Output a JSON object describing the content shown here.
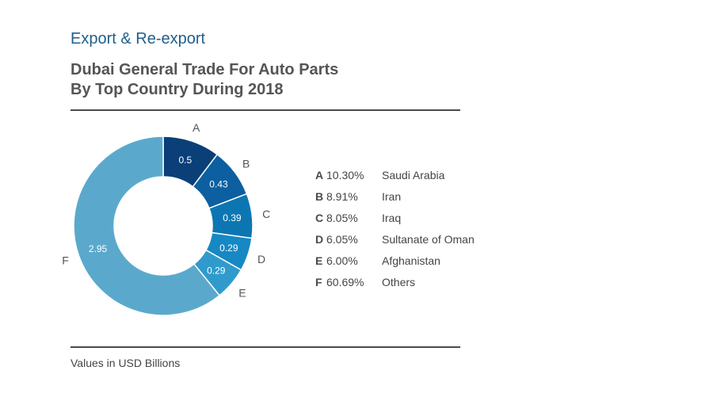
{
  "section_title": "Export & Re-export",
  "title_line1": "Dubai General Trade For Auto Parts",
  "title_line2": "By Top Country During 2018",
  "footnote": "Values in USD Billions",
  "chart_data": {
    "type": "pie",
    "title": "Dubai General Trade For Auto Parts By Top Country During 2018",
    "unit": "USD Billions",
    "categories": [
      "A",
      "B",
      "C",
      "D",
      "E",
      "F"
    ],
    "values": [
      0.5,
      0.43,
      0.39,
      0.29,
      0.29,
      2.95
    ],
    "value_labels": [
      "0.5",
      "0.43",
      "0.39",
      "0.29",
      "0.29",
      "2.95"
    ],
    "percent_labels": [
      "10.30%",
      "8.91%",
      "8.05%",
      "6.05%",
      "6.00%",
      "60.69%"
    ],
    "names": [
      "Saudi Arabia",
      "Iran",
      "Iraq",
      "Sultanate of Oman",
      "Afghanistan",
      "Others"
    ],
    "colors": [
      "#0b3f78",
      "#0c5fa0",
      "#0c76b3",
      "#1688c4",
      "#2f9bcc",
      "#5aa9cc"
    ]
  }
}
